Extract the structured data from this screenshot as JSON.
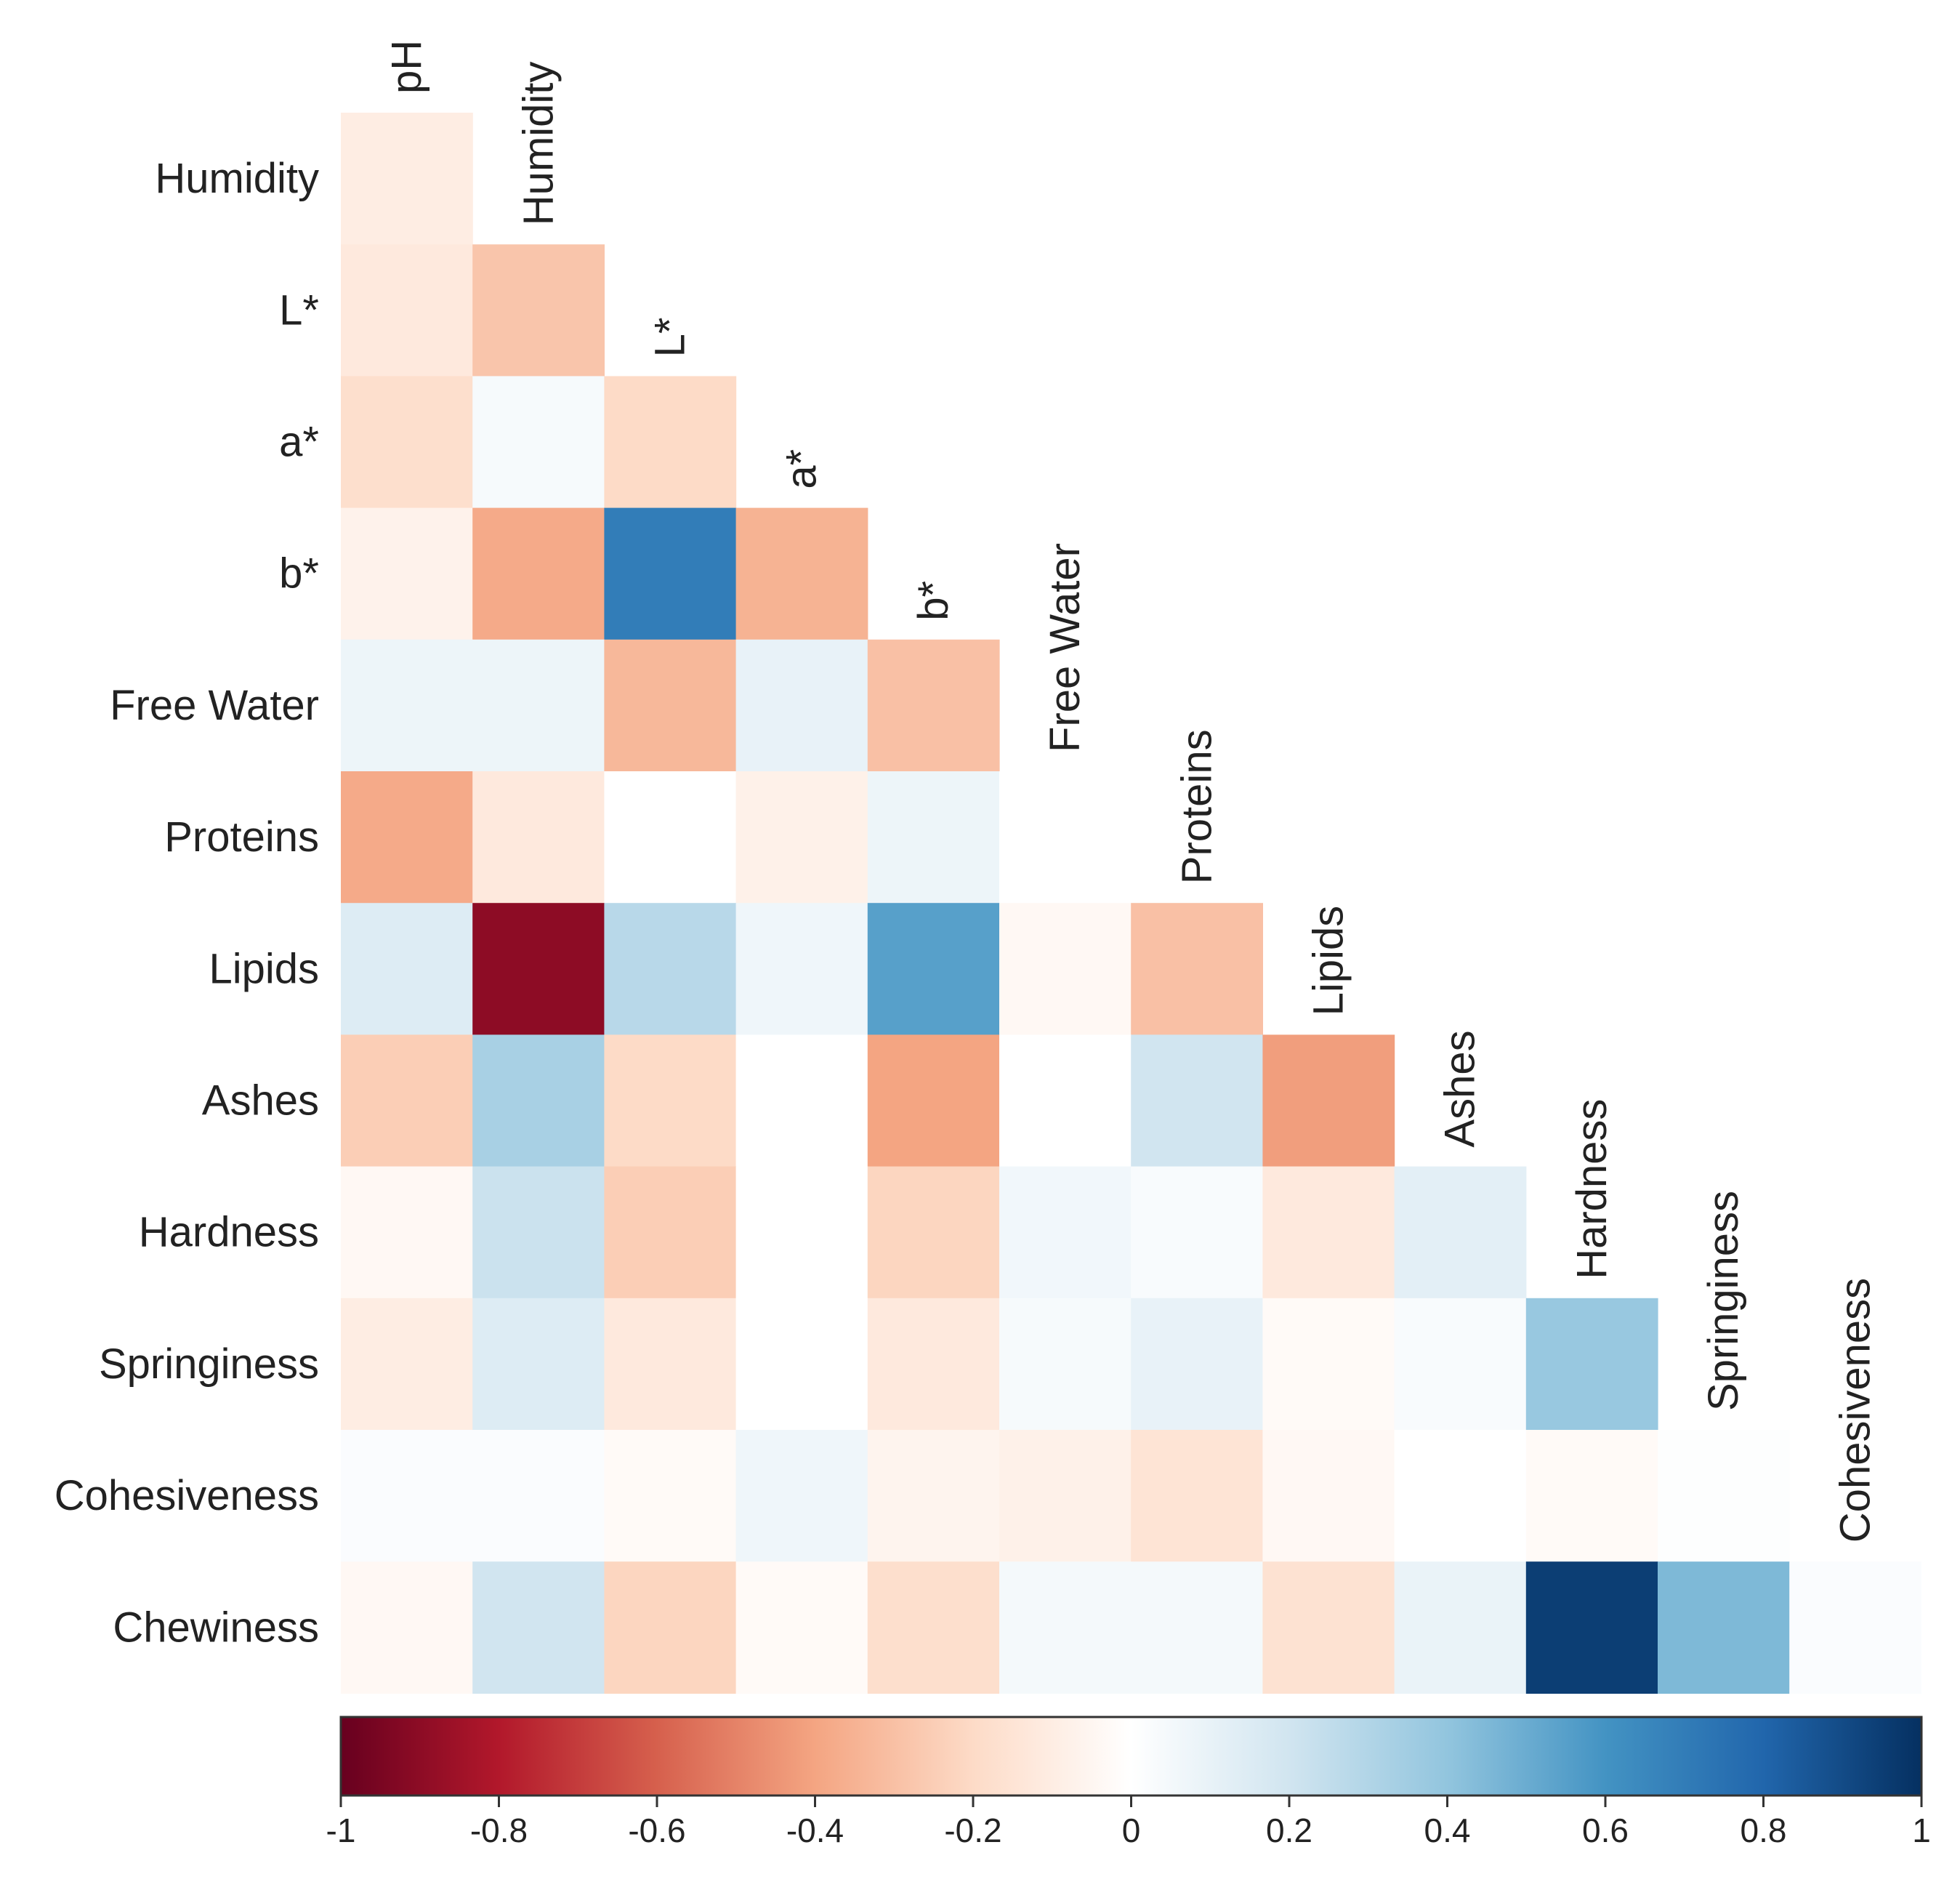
{
  "chart_data": {
    "type": "heatmap",
    "title": "",
    "subtitle": "",
    "variables": [
      "pH",
      "Humidity",
      "L*",
      "a*",
      "b*",
      "Free Water",
      "Proteins",
      "Lipids",
      "Ashes",
      "Hardness",
      "Springiness",
      "Cohesiveness",
      "Chewiness"
    ],
    "layout": "lower-triangle",
    "row_labels": [
      "Humidity",
      "L*",
      "a*",
      "b*",
      "Free Water",
      "Proteins",
      "Lipids",
      "Ashes",
      "Hardness",
      "Springiness",
      "Cohesiveness",
      "Chewiness"
    ],
    "column_labels": [
      "pH",
      "Humidity",
      "L*",
      "a*",
      "b*",
      "Free Water",
      "Proteins",
      "Lipids",
      "Ashes",
      "Hardness",
      "Springiness",
      "Cohesiveness"
    ],
    "values": [
      [
        -0.1
      ],
      [
        -0.12,
        -0.28
      ],
      [
        -0.18,
        0.04,
        -0.2
      ],
      [
        -0.07,
        -0.38,
        0.7,
        -0.35
      ],
      [
        0.08,
        0.08,
        -0.33,
        0.1,
        -0.3
      ],
      [
        -0.38,
        -0.12,
        0.0,
        -0.08,
        0.08,
        0.0
      ],
      [
        0.15,
        -0.9,
        0.28,
        0.07,
        0.55,
        -0.04,
        -0.3
      ],
      [
        -0.25,
        0.33,
        -0.2,
        0.0,
        -0.4,
        0.0,
        0.2,
        -0.42
      ],
      [
        -0.04,
        0.22,
        -0.25,
        0.0,
        -0.22,
        0.06,
        0.03,
        -0.12,
        0.12
      ],
      [
        -0.1,
        0.15,
        -0.12,
        0.0,
        -0.12,
        0.04,
        0.1,
        -0.03,
        0.03,
        0.38
      ],
      [
        0.02,
        0.02,
        -0.03,
        0.07,
        -0.06,
        -0.08,
        -0.15,
        -0.04,
        0.0,
        -0.03,
        0.01
      ],
      [
        -0.04,
        0.2,
        -0.22,
        -0.03,
        -0.18,
        0.05,
        0.05,
        -0.16,
        0.09,
        0.95,
        0.45,
        0.02
      ]
    ],
    "colorbar": {
      "range": [
        -1,
        1
      ],
      "ticks": [
        -1,
        -0.8,
        -0.6,
        -0.4,
        -0.2,
        0,
        0.2,
        0.4,
        0.6,
        0.8,
        1
      ],
      "tick_labels": [
        "-1",
        "-0.8",
        "-0.6",
        "-0.4",
        "-0.2",
        "0",
        "0.2",
        "0.4",
        "0.6",
        "0.8",
        "1"
      ],
      "placement": "bottom",
      "colors": [
        "#67001f",
        "#b2182b",
        "#d6604d",
        "#f4a582",
        "#fddbc7",
        "#ffffff",
        "#d1e5f0",
        "#92c5de",
        "#4393c3",
        "#2166ac",
        "#053061"
      ]
    },
    "grid": false
  }
}
